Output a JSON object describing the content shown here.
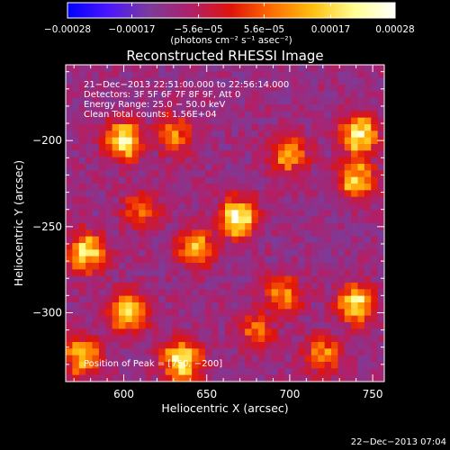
{
  "chart_data": {
    "type": "heatmap",
    "title": "Reconstructed RHESSI Image",
    "xlabel": "Heliocentric X (arcsec)",
    "ylabel": "Heliocentric Y (arcsec)",
    "xlim": [
      565,
      757
    ],
    "ylim": [
      -340,
      -156
    ],
    "x_ticks": [
      600,
      650,
      700,
      750
    ],
    "x_tick_labels": [
      "600",
      "650",
      "700",
      "750"
    ],
    "y_ticks": [
      -200,
      -250,
      -300
    ],
    "y_tick_labels": [
      "−200",
      "−250",
      "−300"
    ],
    "colorbar": {
      "range": [
        -0.00028,
        0.00028
      ],
      "tick_values": [
        -0.00028,
        -0.00017,
        -5.6e-05,
        5.6e-05,
        0.00017,
        0.00028
      ],
      "tick_labels": [
        "−0.00028",
        "−0.00017",
        "−5.6e−05",
        "5.6e−05",
        "0.00017",
        "0.00028"
      ],
      "unit_label": "(photons cm⁻² s⁻¹ asec⁻²)",
      "colormap": [
        "#0000ff",
        "#4a16ff",
        "#7c3b9a",
        "#b0206a",
        "#e0140a",
        "#ff6e00",
        "#ffc010",
        "#ffff90",
        "#ffffff"
      ]
    },
    "annotations": [
      "21−Dec−2013 22:51:00.000 to 22:56:14.000",
      "Detectors: 3F 5F 6F 7F 8F 9F, Att 0",
      "Energy Range: 25.0 − 50.0 keV",
      "Clean   Total counts: 1.56E+04"
    ],
    "peak_label": "Position of Peak = [750, −200]",
    "hotspots": [
      {
        "x": 600,
        "y": -200,
        "value": 0.00026
      },
      {
        "x": 669,
        "y": -245,
        "value": 0.00028
      },
      {
        "x": 742,
        "y": -197,
        "value": 0.00027
      },
      {
        "x": 740,
        "y": -222,
        "value": 0.00022
      },
      {
        "x": 578,
        "y": -265,
        "value": 0.00024
      },
      {
        "x": 603,
        "y": -300,
        "value": 0.00023
      },
      {
        "x": 643,
        "y": -262,
        "value": 0.0002
      },
      {
        "x": 700,
        "y": -208,
        "value": 0.00018
      },
      {
        "x": 740,
        "y": -295,
        "value": 0.00024
      },
      {
        "x": 635,
        "y": -328,
        "value": 0.00027
      },
      {
        "x": 575,
        "y": -325,
        "value": 0.00021
      },
      {
        "x": 696,
        "y": -290,
        "value": 0.00016
      },
      {
        "x": 630,
        "y": -196,
        "value": 0.00015
      },
      {
        "x": 680,
        "y": -310,
        "value": 0.00014
      },
      {
        "x": 610,
        "y": -240,
        "value": 0.00012
      },
      {
        "x": 720,
        "y": -325,
        "value": 0.00015
      }
    ]
  },
  "footer": {
    "timestamp": "22−Dec−2013 07:04"
  }
}
